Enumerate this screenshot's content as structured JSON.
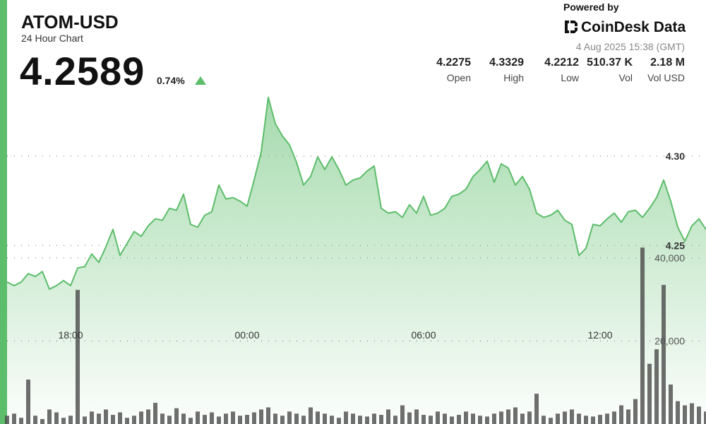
{
  "chart_data": {
    "type": "area",
    "title": "ATOM-USD",
    "subtitle": "24 Hour Chart",
    "price": 4.2589,
    "change": {
      "value": 0.74,
      "label": "0.74%"
    },
    "powered_by": "Powered by",
    "brand": "CoinDesk Data",
    "timestamp": "4 Aug 2025 15:38 (GMT)",
    "stats": [
      {
        "name": "Open",
        "value": 4.2275
      },
      {
        "name": "High",
        "value": 4.3329
      },
      {
        "name": "Low",
        "value": 4.2212
      },
      {
        "name": "Vol",
        "value": 510370,
        "value_label": "510.37 K"
      },
      {
        "name": "Vol USD",
        "value": 2180000,
        "value_label": "2.18 M"
      }
    ],
    "x": [
      15.84,
      16.08,
      16.32,
      16.56,
      16.8,
      17.04,
      17.28,
      17.52,
      17.76,
      18.0,
      18.24,
      18.48,
      18.72,
      18.96,
      19.2,
      19.44,
      19.68,
      19.92,
      20.16,
      20.4,
      20.64,
      20.88,
      21.12,
      21.36,
      21.6,
      21.84,
      22.08,
      22.32,
      22.56,
      22.8,
      23.04,
      23.28,
      23.52,
      23.76,
      24.0,
      24.24,
      24.48,
      24.72,
      24.96,
      25.2,
      25.44,
      25.68,
      25.92,
      26.16,
      26.4,
      26.64,
      26.88,
      27.12,
      27.36,
      27.6,
      27.84,
      28.08,
      28.32,
      28.56,
      28.8,
      29.04,
      29.28,
      29.52,
      29.76,
      30.0,
      30.24,
      30.48,
      30.72,
      30.96,
      31.2,
      31.44,
      31.68,
      31.92,
      32.16,
      32.4,
      32.64,
      32.88,
      33.12,
      33.36,
      33.6,
      33.84,
      34.08,
      34.32,
      34.56,
      34.8,
      35.04,
      35.28,
      35.52,
      35.76,
      36.0,
      36.24,
      36.48,
      36.72,
      36.96,
      37.2,
      37.44,
      37.68,
      37.92,
      38.16,
      38.4,
      38.64,
      38.88,
      39.12,
      39.36,
      39.6
    ],
    "series": [
      {
        "name": "Price",
        "color": "#5cbd6a",
        "values": [
          4.2295,
          4.2275,
          4.2295,
          4.2342,
          4.2326,
          4.2354,
          4.2255,
          4.2275,
          4.2303,
          4.2275,
          4.2374,
          4.2381,
          4.2452,
          4.2405,
          4.2492,
          4.259,
          4.2444,
          4.2511,
          4.2578,
          4.2551,
          4.261,
          4.2649,
          4.2641,
          4.2708,
          4.2697,
          4.2787,
          4.2618,
          4.2602,
          4.2669,
          4.2689,
          4.2838,
          4.276,
          4.2768,
          4.2748,
          4.272,
          4.2866,
          4.3024,
          4.3329,
          4.3181,
          4.3114,
          4.3063,
          4.2965,
          4.2838,
          4.2886,
          4.2996,
          4.2925,
          4.2996,
          4.2925,
          4.2838,
          4.2866,
          4.2878,
          4.2917,
          4.2945,
          4.2708,
          4.2681,
          4.2689,
          4.2657,
          4.2728,
          4.2681,
          4.2775,
          4.2669,
          4.2681,
          4.2708,
          4.2775,
          4.2787,
          4.2815,
          4.2886,
          4.2925,
          4.2972,
          4.2854,
          4.2957,
          4.2933,
          4.2838,
          4.2886,
          4.2815,
          4.2681,
          4.2657,
          4.2669,
          4.2697,
          4.2641,
          4.2618,
          4.2444,
          4.2484,
          4.2618,
          4.261,
          4.2649,
          4.2681,
          4.263,
          4.2689,
          4.2697,
          4.2657,
          4.2708,
          4.2768,
          4.2866,
          4.2748,
          4.2602,
          4.2523,
          4.261,
          4.2649,
          4.2589
        ]
      },
      {
        "name": "Volume",
        "color": "#4a4a4a",
        "axis": "y2",
        "type": "bar",
        "values": [
          2000,
          2500,
          1500,
          10700,
          2000,
          1200,
          3500,
          2800,
          1500,
          2000,
          32300,
          1800,
          3000,
          2500,
          3500,
          2200,
          2800,
          1500,
          2000,
          3000,
          3500,
          5100,
          2500,
          2000,
          3800,
          2500,
          1500,
          3000,
          2200,
          2800,
          1800,
          2500,
          3000,
          2000,
          2200,
          2800,
          3500,
          4000,
          2500,
          2000,
          3000,
          2500,
          2000,
          4000,
          3000,
          2500,
          2000,
          1500,
          3000,
          2500,
          2000,
          1800,
          2500,
          2200,
          3500,
          2000,
          4500,
          2800,
          3500,
          2200,
          2000,
          3000,
          2500,
          1800,
          2200,
          3000,
          2500,
          2000,
          1800,
          2500,
          3000,
          3500,
          4000,
          2500,
          3000,
          7300,
          2000,
          1500,
          2500,
          3000,
          3500,
          2500,
          2000,
          1800,
          2200,
          2500,
          3000,
          4500,
          3500,
          6000,
          42500,
          14500,
          18000,
          33500,
          9500,
          5500,
          4500,
          5000,
          4200,
          3000
        ]
      }
    ],
    "xlim": [
      15.6,
      39.6
    ],
    "xticks": [
      {
        "value": 18,
        "label": "18:00"
      },
      {
        "value": 24,
        "label": "00:00"
      },
      {
        "value": 30,
        "label": "06:00"
      },
      {
        "value": 36,
        "label": "12:00"
      }
    ],
    "ylim": [
      4.15,
      4.336
    ],
    "yticks": [
      {
        "value": 4.3,
        "label": "4.30"
      },
      4.25
    ],
    "y2lim": [
      0,
      80000
    ],
    "y2ticks": [
      {
        "value": 20000,
        "label": "20,000"
      },
      {
        "value": 40000,
        "label": "40,000"
      }
    ],
    "grid": true
  }
}
